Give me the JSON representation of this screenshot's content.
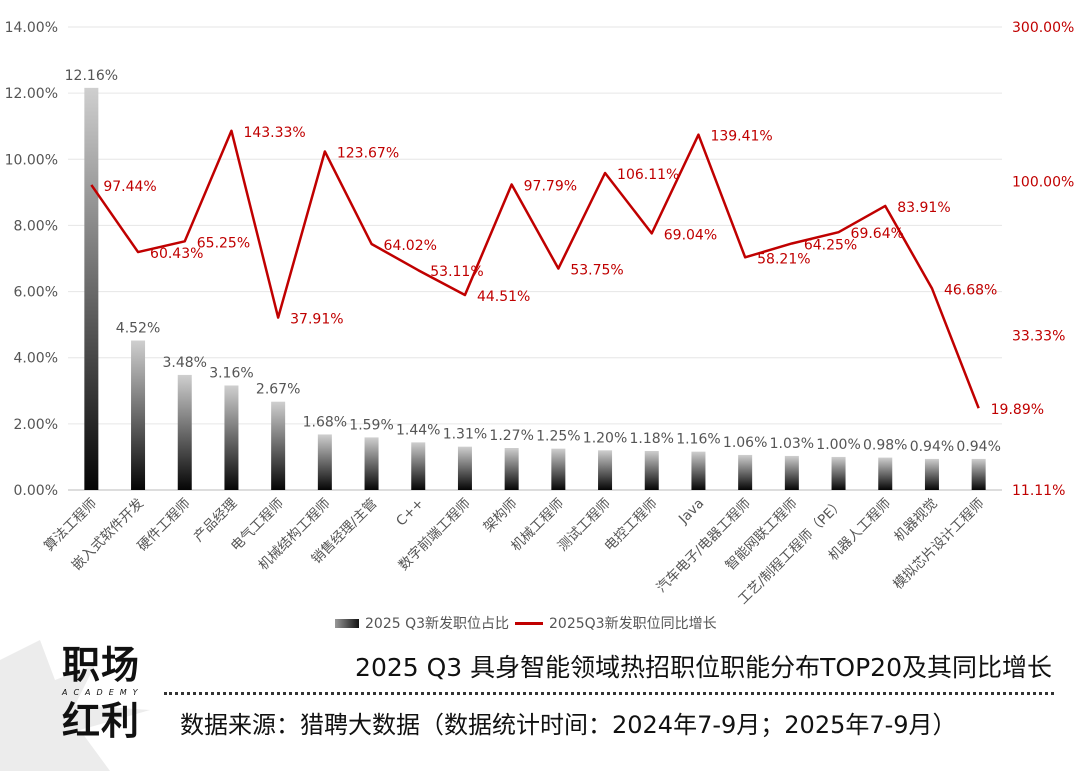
{
  "chart_data": {
    "type": "bar+line",
    "title": "2025 Q3 具身智能领域热招职位职能分布TOP20及其同比增长",
    "source": "数据来源：猎聘大数据（数据统计时间：2024年7-9月；2025年7-9月）",
    "categories": [
      "算法工程师",
      "嵌入式软件开发",
      "硬件工程师",
      "产品经理",
      "电气工程师",
      "机械结构工程师",
      "销售经理/主管",
      "C++",
      "数字前端工程师",
      "架构师",
      "机械工程师",
      "测试工程师",
      "电控工程师",
      "Java",
      "汽车电子/电器工程师",
      "智能网联工程师",
      "工艺/制程工程师（PE）",
      "机器人工程师",
      "机器视觉",
      "模拟芯片设计工程师"
    ],
    "series": [
      {
        "name": "2025 Q3新发职位占比",
        "type": "bar",
        "axis": "left",
        "values": [
          12.16,
          4.52,
          3.48,
          3.16,
          2.67,
          1.68,
          1.59,
          1.44,
          1.31,
          1.27,
          1.25,
          1.2,
          1.18,
          1.16,
          1.06,
          1.03,
          1.0,
          0.98,
          0.94,
          0.94
        ],
        "labels": [
          "12.16%",
          "4.52%",
          "3.48%",
          "3.16%",
          "2.67%",
          "1.68%",
          "1.59%",
          "1.44%",
          "1.31%",
          "1.27%",
          "1.25%",
          "1.20%",
          "1.18%",
          "1.16%",
          "1.06%",
          "1.03%",
          "1.00%",
          "0.98%",
          "0.94%",
          "0.94%"
        ]
      },
      {
        "name": "2025Q3新发职位同比增长",
        "type": "line",
        "axis": "right",
        "values": [
          97.44,
          60.43,
          65.25,
          143.33,
          37.91,
          123.67,
          64.02,
          53.11,
          44.51,
          97.79,
          53.75,
          106.11,
          69.04,
          139.41,
          58.21,
          64.25,
          69.64,
          83.91,
          46.68,
          19.89
        ],
        "labels": [
          "97.44%",
          "60.43%",
          "65.25%",
          "143.33%",
          "37.91%",
          "123.67%",
          "64.02%",
          "53.11%",
          "44.51%",
          "97.79%",
          "53.75%",
          "106.11%",
          "69.04%",
          "139.41%",
          "58.21%",
          "64.25%",
          "69.64%",
          "83.91%",
          "46.68%",
          "19.89%"
        ]
      }
    ],
    "left_axis": {
      "ylim": [
        0,
        14
      ],
      "ticks": [
        0,
        2,
        4,
        6,
        8,
        10,
        12,
        14
      ],
      "tick_labels": [
        "0.00%",
        "2.00%",
        "4.00%",
        "6.00%",
        "8.00%",
        "10.00%",
        "12.00%",
        "14.00%"
      ]
    },
    "right_axis": {
      "scale": "log",
      "ylim": [
        11.11,
        300
      ],
      "ticks": [
        11.11,
        33.33,
        100,
        300
      ],
      "tick_labels": [
        "11.11%",
        "33.33%",
        "100.00%",
        "300.00%"
      ]
    },
    "legend": [
      "2025 Q3新发职位占比",
      "2025Q3新发职位同比增长"
    ],
    "legend_position": "bottom",
    "grid": true
  },
  "brand": {
    "logo_top": "职场",
    "logo_mid": "ACADEMY",
    "logo_bottom": "红利"
  },
  "colors": {
    "line": "#c00000",
    "bar_top": "#c8c8c8",
    "bar_bottom": "#0a0a0a",
    "grid": "#e6e6e6",
    "text": "#555555"
  }
}
